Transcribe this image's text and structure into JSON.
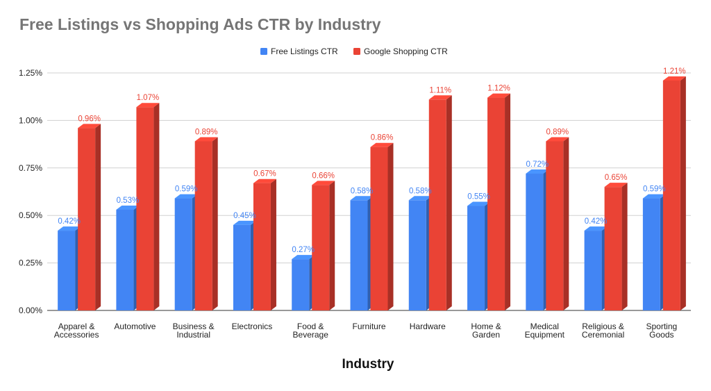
{
  "chart_data": {
    "type": "bar",
    "title": "Free Listings vs Shopping Ads CTR by Industry",
    "xlabel": "Industry",
    "ylabel": "",
    "ylim": [
      0,
      1.25
    ],
    "y_ticks": [
      "0.00%",
      "0.25%",
      "0.50%",
      "0.75%",
      "1.00%",
      "1.25%"
    ],
    "y_tick_values": [
      0,
      0.25,
      0.5,
      0.75,
      1.0,
      1.25
    ],
    "grid": true,
    "legend_position": "top",
    "bar_style": "3d",
    "categories": [
      [
        "Apparel &",
        "Accessories"
      ],
      [
        "Automotive"
      ],
      [
        "Business &",
        "Industrial"
      ],
      [
        "Electronics"
      ],
      [
        "Food &",
        "Beverage"
      ],
      [
        "Furniture"
      ],
      [
        "Hardware"
      ],
      [
        "Home &",
        "Garden"
      ],
      [
        "Medical",
        "Equipment"
      ],
      [
        "Religious &",
        "Ceremonial"
      ],
      [
        "Sporting",
        "Goods"
      ]
    ],
    "series": [
      {
        "name": "Free Listings CTR",
        "color": "#4285f4",
        "values": [
          0.42,
          0.53,
          0.59,
          0.45,
          0.27,
          0.58,
          0.58,
          0.55,
          0.72,
          0.42,
          0.59
        ],
        "labels": [
          "0.42%",
          "0.53%",
          "0.59%",
          "0.45%",
          "0.27%",
          "0.58%",
          "0.58%",
          "0.55%",
          "0.72%",
          "0.42%",
          "0.59%"
        ]
      },
      {
        "name": "Google Shopping CTR",
        "color": "#ea4335",
        "values": [
          0.96,
          1.07,
          0.89,
          0.67,
          0.66,
          0.86,
          1.11,
          1.12,
          0.89,
          0.65,
          1.21
        ],
        "labels": [
          "0.96%",
          "1.07%",
          "0.89%",
          "0.67%",
          "0.66%",
          "0.86%",
          "1.11%",
          "1.12%",
          "0.89%",
          "0.65%",
          "1.21%"
        ]
      }
    ]
  }
}
